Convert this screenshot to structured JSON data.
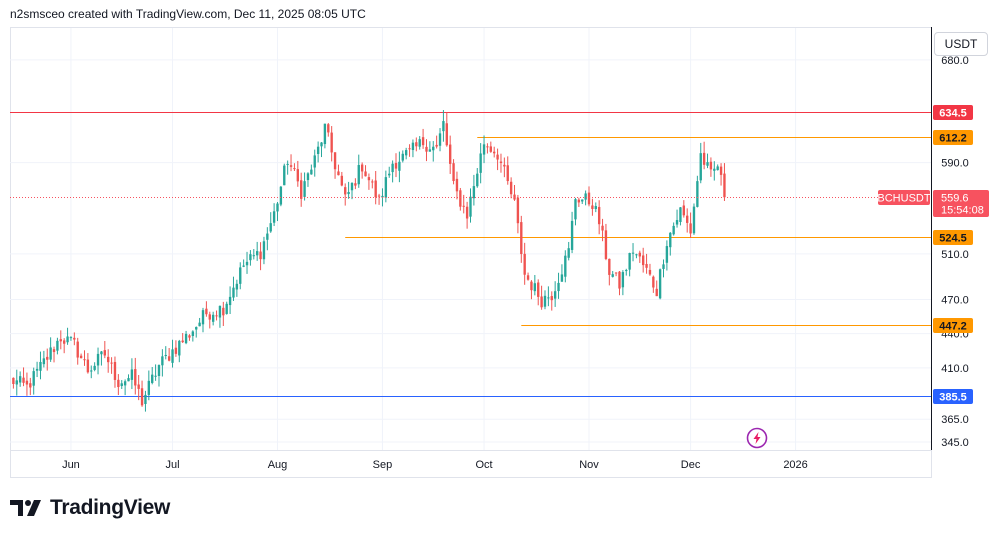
{
  "header": {
    "caption": "n2smsceo created with TradingView.com, Dec 11, 2025 08:05 UTC"
  },
  "price_axis": {
    "unit": "USDT"
  },
  "brand": {
    "name": "TradingView"
  },
  "colors": {
    "up": "#26a69a",
    "down": "#ef5350",
    "resistance": "#f23645",
    "zone": "#ff9800",
    "support": "#2962ff",
    "last_price_bg": "#f7525f"
  },
  "chart_data": {
    "type": "candlestick",
    "symbol": "BCHUSDT",
    "timeframe": "1D",
    "xlim": [
      "2025-05-14",
      "2026-02-10"
    ],
    "ylim": [
      338,
      708
    ],
    "y_ticks": [
      345.0,
      365.0,
      410.0,
      440.0,
      470.0,
      510.0,
      590.0,
      680.0
    ],
    "x_ticks": [
      {
        "date": "2025-06-01",
        "label": "Jun"
      },
      {
        "date": "2025-07-01",
        "label": "Jul"
      },
      {
        "date": "2025-08-01",
        "label": "Aug"
      },
      {
        "date": "2025-09-01",
        "label": "Sep"
      },
      {
        "date": "2025-10-01",
        "label": "Oct"
      },
      {
        "date": "2025-11-01",
        "label": "Nov"
      },
      {
        "date": "2025-12-01",
        "label": "Dec"
      },
      {
        "date": "2026-01-01",
        "label": "2026"
      }
    ],
    "last_price": {
      "value": "559.6",
      "symbol": "BCHUSDT",
      "countdown": "15:54:08"
    },
    "levels": [
      {
        "value": 634.5,
        "label": "634.5",
        "role": "resistance",
        "color": "#f23645",
        "from": "2025-05-14"
      },
      {
        "value": 612.2,
        "label": "612.2",
        "role": "zone",
        "color": "#ff9800",
        "from": "2025-09-29"
      },
      {
        "value": 524.5,
        "label": "524.5",
        "role": "zone",
        "color": "#ff9800",
        "from": "2025-08-21"
      },
      {
        "value": 447.2,
        "label": "447.2",
        "role": "zone",
        "color": "#ff9800",
        "from": "2025-10-12"
      },
      {
        "value": 385.5,
        "label": "385.5",
        "role": "support",
        "color": "#2962ff",
        "from": "2025-05-14"
      }
    ],
    "close_anchors": [
      [
        "2025-05-14",
        400
      ],
      [
        "2025-05-19",
        393
      ],
      [
        "2025-05-24",
        415
      ],
      [
        "2025-05-29",
        437
      ],
      [
        "2025-06-02",
        430
      ],
      [
        "2025-06-06",
        408
      ],
      [
        "2025-06-11",
        422
      ],
      [
        "2025-06-15",
        398
      ],
      [
        "2025-06-19",
        402
      ],
      [
        "2025-06-22",
        381
      ],
      [
        "2025-06-27",
        412
      ],
      [
        "2025-07-01",
        425
      ],
      [
        "2025-07-06",
        440
      ],
      [
        "2025-07-11",
        458
      ],
      [
        "2025-07-16",
        463
      ],
      [
        "2025-07-22",
        500
      ],
      [
        "2025-07-27",
        512
      ],
      [
        "2025-07-31",
        545
      ],
      [
        "2025-08-04",
        593
      ],
      [
        "2025-08-08",
        565
      ],
      [
        "2025-08-12",
        592
      ],
      [
        "2025-08-15",
        620
      ],
      [
        "2025-08-21",
        557
      ],
      [
        "2025-08-26",
        588
      ],
      [
        "2025-08-31",
        556
      ],
      [
        "2025-09-04",
        590
      ],
      [
        "2025-09-09",
        598
      ],
      [
        "2025-09-13",
        608
      ],
      [
        "2025-09-17",
        602
      ],
      [
        "2025-09-19",
        624
      ],
      [
        "2025-09-22",
        568
      ],
      [
        "2025-09-26",
        545
      ],
      [
        "2025-10-01",
        608
      ],
      [
        "2025-10-05",
        598
      ],
      [
        "2025-10-10",
        553
      ],
      [
        "2025-10-13",
        492
      ],
      [
        "2025-10-18",
        470
      ],
      [
        "2025-10-21",
        475
      ],
      [
        "2025-10-26",
        512
      ],
      [
        "2025-10-28",
        560
      ],
      [
        "2025-11-02",
        555
      ],
      [
        "2025-11-04",
        538
      ],
      [
        "2025-11-07",
        495
      ],
      [
        "2025-11-10",
        483
      ],
      [
        "2025-11-14",
        514
      ],
      [
        "2025-11-18",
        495
      ],
      [
        "2025-11-21",
        478
      ],
      [
        "2025-11-24",
        522
      ],
      [
        "2025-11-28",
        548
      ],
      [
        "2025-12-01",
        530
      ],
      [
        "2025-12-04",
        597
      ],
      [
        "2025-12-07",
        578
      ],
      [
        "2025-12-09",
        588
      ],
      [
        "2025-12-11",
        559.6
      ]
    ]
  }
}
